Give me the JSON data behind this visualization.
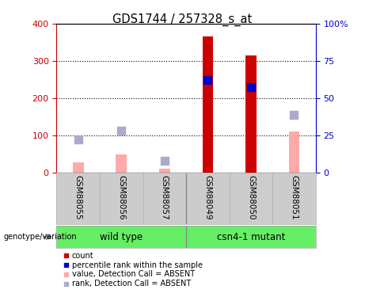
{
  "title": "GDS1744 / 257328_s_at",
  "samples": [
    "GSM88055",
    "GSM88056",
    "GSM88057",
    "GSM88049",
    "GSM88050",
    "GSM88051"
  ],
  "group_labels": [
    "wild type",
    "csn4-1 mutant"
  ],
  "group_ranges": [
    [
      0,
      2
    ],
    [
      3,
      5
    ]
  ],
  "bar_absent_values": [
    27,
    47,
    10,
    null,
    null,
    110
  ],
  "bar_present_values": [
    null,
    null,
    null,
    365,
    315,
    null
  ],
  "rank_absent_values": [
    88,
    113,
    30,
    null,
    null,
    155
  ],
  "rank_present_values": [
    null,
    null,
    null,
    248,
    230,
    null
  ],
  "ylim_left": [
    0,
    400
  ],
  "yticks_left": [
    0,
    100,
    200,
    300,
    400
  ],
  "yticks_right": [
    0,
    25,
    50,
    75,
    100
  ],
  "yticklabels_right": [
    "0",
    "25",
    "50",
    "75",
    "100%"
  ],
  "left_axis_color": "#cc0000",
  "right_axis_color": "#0000cc",
  "bar_width": 0.25,
  "rank_marker_size": 55,
  "x_label_area_color": "#cccccc",
  "group_area_color": "#66ee66",
  "legend_colors": [
    "#cc0000",
    "#0000cc",
    "#ffaaaa",
    "#aaaacc"
  ],
  "legend_labels": [
    "count",
    "percentile rank within the sample",
    "value, Detection Call = ABSENT",
    "rank, Detection Call = ABSENT"
  ]
}
